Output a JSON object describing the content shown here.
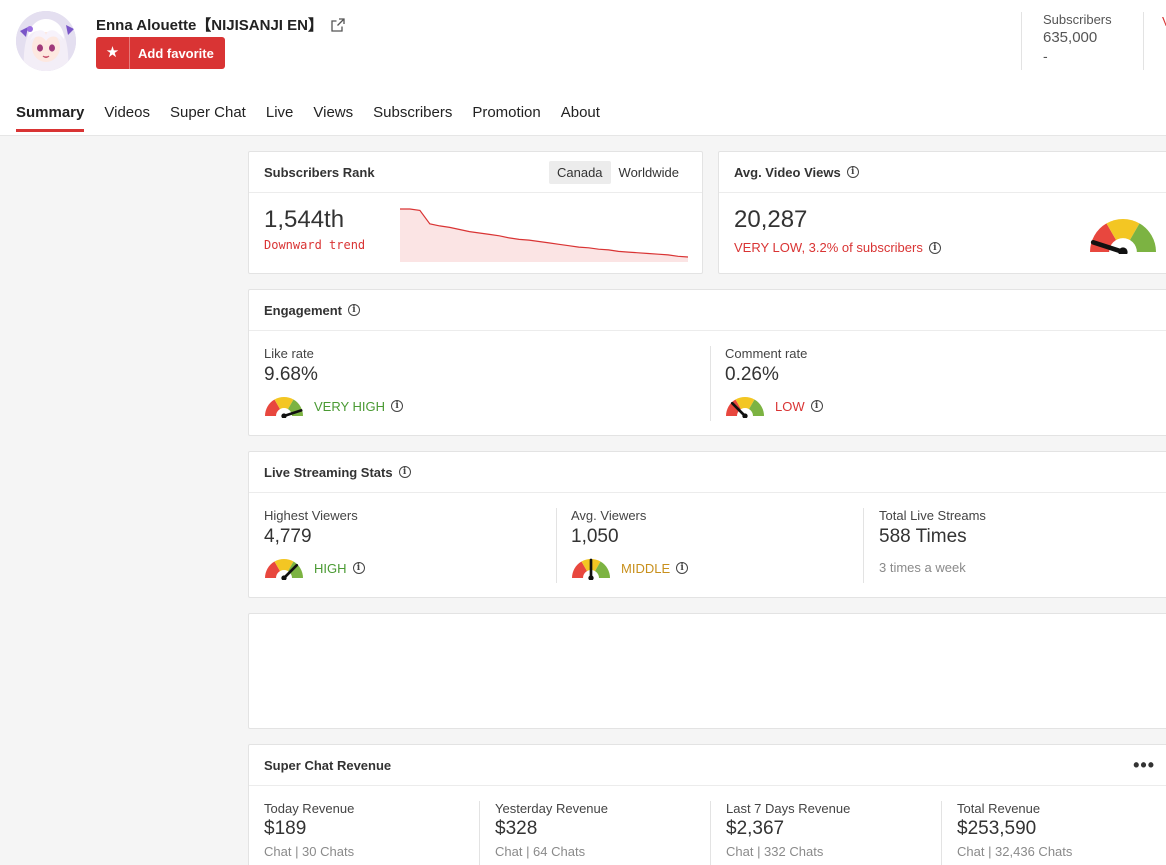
{
  "channel": {
    "name": "Enna Alouette【NIJISANJI EN】",
    "favorite_label": "Add favorite",
    "header_stat": {
      "label": "Subscribers",
      "value": "635,000",
      "delta": "-"
    },
    "header_peek": "V"
  },
  "tabs": [
    "Summary",
    "Videos",
    "Super Chat",
    "Live",
    "Views",
    "Subscribers",
    "Promotion",
    "About"
  ],
  "active_tab": "Summary",
  "subscribers_rank": {
    "title": "Subscribers Rank",
    "regions": [
      "Canada",
      "Worldwide"
    ],
    "selected_region": "Canada",
    "rank": "1,544th",
    "trend": "Downward trend",
    "sparkline": [
      96,
      96,
      94,
      75,
      72,
      70,
      67,
      64,
      62,
      60,
      58,
      55,
      53,
      52,
      50,
      48,
      46,
      44,
      42,
      41,
      39,
      38,
      36,
      35,
      34,
      33,
      32,
      31,
      29,
      28
    ]
  },
  "avg_video_views": {
    "title": "Avg. Video Views",
    "value": "20,287",
    "rating": "VERY LOW, 3.2% of subscribers",
    "level": 0.1
  },
  "engagement": {
    "title": "Engagement",
    "like_rate": {
      "label": "Like rate",
      "value": "9.68%",
      "rating": "VERY HIGH",
      "level": 0.9
    },
    "comment_rate": {
      "label": "Comment rate",
      "value": "0.26%",
      "rating": "LOW",
      "level": 0.25
    }
  },
  "live_stats": {
    "title": "Live Streaming Stats",
    "highest": {
      "label": "Highest Viewers",
      "value": "4,779",
      "rating": "HIGH",
      "level": 0.75
    },
    "avg": {
      "label": "Avg. Viewers",
      "value": "1,050",
      "rating": "MIDDLE",
      "level": 0.5
    },
    "total": {
      "label": "Total Live Streams",
      "value": "588 Times",
      "note": "3 times a week"
    }
  },
  "super_chat": {
    "title": "Super Chat Revenue",
    "menu": "•••",
    "cols": [
      {
        "label": "Today Revenue",
        "value": "$189",
        "sub": "Chat | 30 Chats"
      },
      {
        "label": "Yesterday Revenue",
        "value": "$328",
        "sub": "Chat | 64 Chats"
      },
      {
        "label": "Last 7 Days Revenue",
        "value": "$2,367",
        "sub": "Chat | 332 Chats"
      },
      {
        "label": "Total Revenue",
        "value": "$253,590",
        "sub": "Chat | 32,436 Chats"
      }
    ]
  },
  "colors": {
    "accent": "#d93434",
    "gauge_red": "#e8473e",
    "gauge_yellow": "#f3c623",
    "gauge_green": "#7cb342"
  }
}
